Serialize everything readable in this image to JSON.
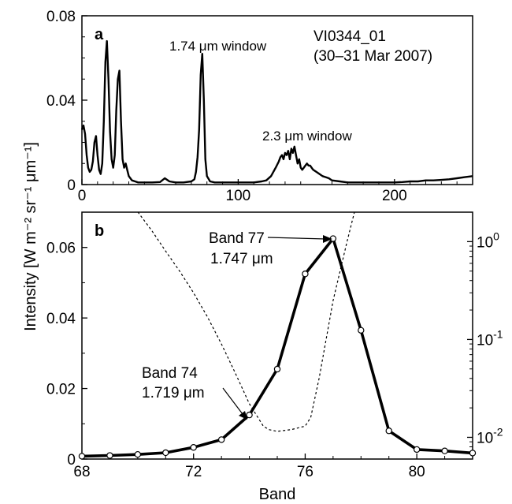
{
  "figure": {
    "ylabel": "Intensity [W m⁻² sr⁻¹ μm⁻¹]",
    "xlabel": "Band"
  },
  "chart_data": [
    {
      "type": "line",
      "panel_label": "a",
      "xlim": [
        0,
        250
      ],
      "ylim": [
        0,
        0.08
      ],
      "xticks": [
        0,
        100,
        200
      ],
      "xtick_labels": [
        "0",
        "100",
        "200"
      ],
      "yticks": [
        0,
        0.04,
        0.08
      ],
      "ytick_labels": [
        "0",
        "0.04",
        "0.08"
      ],
      "annotations": [
        "1.74 μm window",
        "2.3 μm window",
        "VI0344_01",
        "(30–31 Mar 2007)"
      ],
      "grid": false,
      "series": [
        {
          "x": [
            0,
            1,
            2,
            3,
            4,
            5,
            6,
            7,
            8,
            9,
            10,
            11,
            12,
            13,
            14,
            15,
            16,
            17,
            18,
            19,
            20,
            21,
            22,
            23,
            24,
            25,
            26,
            27,
            28,
            29,
            30,
            31,
            32,
            34,
            36,
            38,
            40,
            45,
            50,
            53,
            56,
            60,
            65,
            70,
            72,
            73,
            74,
            75,
            76,
            77,
            78,
            79,
            80,
            82,
            85,
            90,
            95,
            100,
            105,
            110,
            115,
            118,
            121,
            124,
            126,
            127,
            128,
            129,
            130,
            131,
            132,
            133,
            134,
            135,
            136,
            137,
            138,
            139,
            140,
            141,
            142,
            143,
            144,
            145,
            146,
            147,
            148,
            150,
            152,
            154,
            156,
            158,
            160,
            165,
            170,
            175,
            180,
            185,
            190,
            195,
            200,
            205,
            210,
            215,
            220,
            225,
            230,
            235,
            240,
            245,
            250
          ],
          "y": [
            0.026,
            0.028,
            0.024,
            0.014,
            0.008,
            0.006,
            0.007,
            0.011,
            0.02,
            0.023,
            0.014,
            0.007,
            0.005,
            0.01,
            0.03,
            0.058,
            0.068,
            0.05,
            0.025,
            0.012,
            0.008,
            0.014,
            0.035,
            0.05,
            0.054,
            0.03,
            0.012,
            0.008,
            0.01,
            0.007,
            0.004,
            0.003,
            0.002,
            0.0015,
            0.001,
            0.001,
            0.001,
            0.001,
            0.0012,
            0.003,
            0.0015,
            0.001,
            0.001,
            0.0015,
            0.0025,
            0.006,
            0.013,
            0.026,
            0.052,
            0.062,
            0.04,
            0.012,
            0.004,
            0.0015,
            0.001,
            0.001,
            0.001,
            0.001,
            0.001,
            0.001,
            0.0015,
            0.002,
            0.004,
            0.008,
            0.011,
            0.013,
            0.014,
            0.012,
            0.015,
            0.014,
            0.016,
            0.012,
            0.017,
            0.015,
            0.018,
            0.014,
            0.01,
            0.012,
            0.008,
            0.007,
            0.008,
            0.009,
            0.01,
            0.009,
            0.009,
            0.008,
            0.007,
            0.006,
            0.005,
            0.004,
            0.0035,
            0.003,
            0.002,
            0.0015,
            0.001,
            0.001,
            0.001,
            0.001,
            0.001,
            0.001,
            0.001,
            0.0012,
            0.0015,
            0.0015,
            0.002,
            0.002,
            0.0022,
            0.0025,
            0.003,
            0.0035,
            0.004
          ]
        }
      ]
    },
    {
      "type": "line",
      "panel_label": "b",
      "xlim": [
        68,
        82
      ],
      "ylim": [
        0,
        0.07
      ],
      "xticks": [
        68,
        72,
        76,
        80
      ],
      "xtick_labels": [
        "68",
        "72",
        "76",
        "80"
      ],
      "yticks": [
        0,
        0.02,
        0.04,
        0.06
      ],
      "ytick_labels": [
        "0",
        "0.02",
        "0.04",
        "0.06"
      ],
      "y2_scale": "log",
      "y2lim": [
        0.006,
        2
      ],
      "y2ticks": [
        0.01,
        0.1,
        1
      ],
      "grid": false,
      "annotations": [
        {
          "text": "Band 77",
          "text2": "1.747 μm",
          "x": 77,
          "y": 0.0625
        },
        {
          "text": "Band 74",
          "text2": "1.719 μm",
          "x": 74,
          "y": 0.0125
        }
      ],
      "series": [
        {
          "style": "solid-markers",
          "x": [
            68,
            69,
            70,
            71,
            72,
            73,
            74,
            75,
            76,
            77,
            78,
            79,
            80,
            81,
            82
          ],
          "y": [
            0.0008,
            0.001,
            0.0013,
            0.0018,
            0.0033,
            0.0055,
            0.0125,
            0.0255,
            0.0525,
            0.0625,
            0.0365,
            0.008,
            0.0027,
            0.0023,
            0.0017
          ]
        },
        {
          "style": "dashed",
          "axis": "right",
          "x": [
            69.8,
            70.5,
            71,
            71.5,
            72,
            72.5,
            73,
            73.5,
            74,
            74.5,
            74.7,
            75,
            75.5,
            76,
            76.2,
            76.5,
            77,
            77.5,
            77.8
          ],
          "y": [
            2.4,
            1.3,
            0.8,
            0.5,
            0.3,
            0.17,
            0.09,
            0.045,
            0.022,
            0.013,
            0.012,
            0.0115,
            0.012,
            0.013,
            0.016,
            0.04,
            0.25,
            1.0,
            2.2
          ]
        }
      ]
    }
  ]
}
